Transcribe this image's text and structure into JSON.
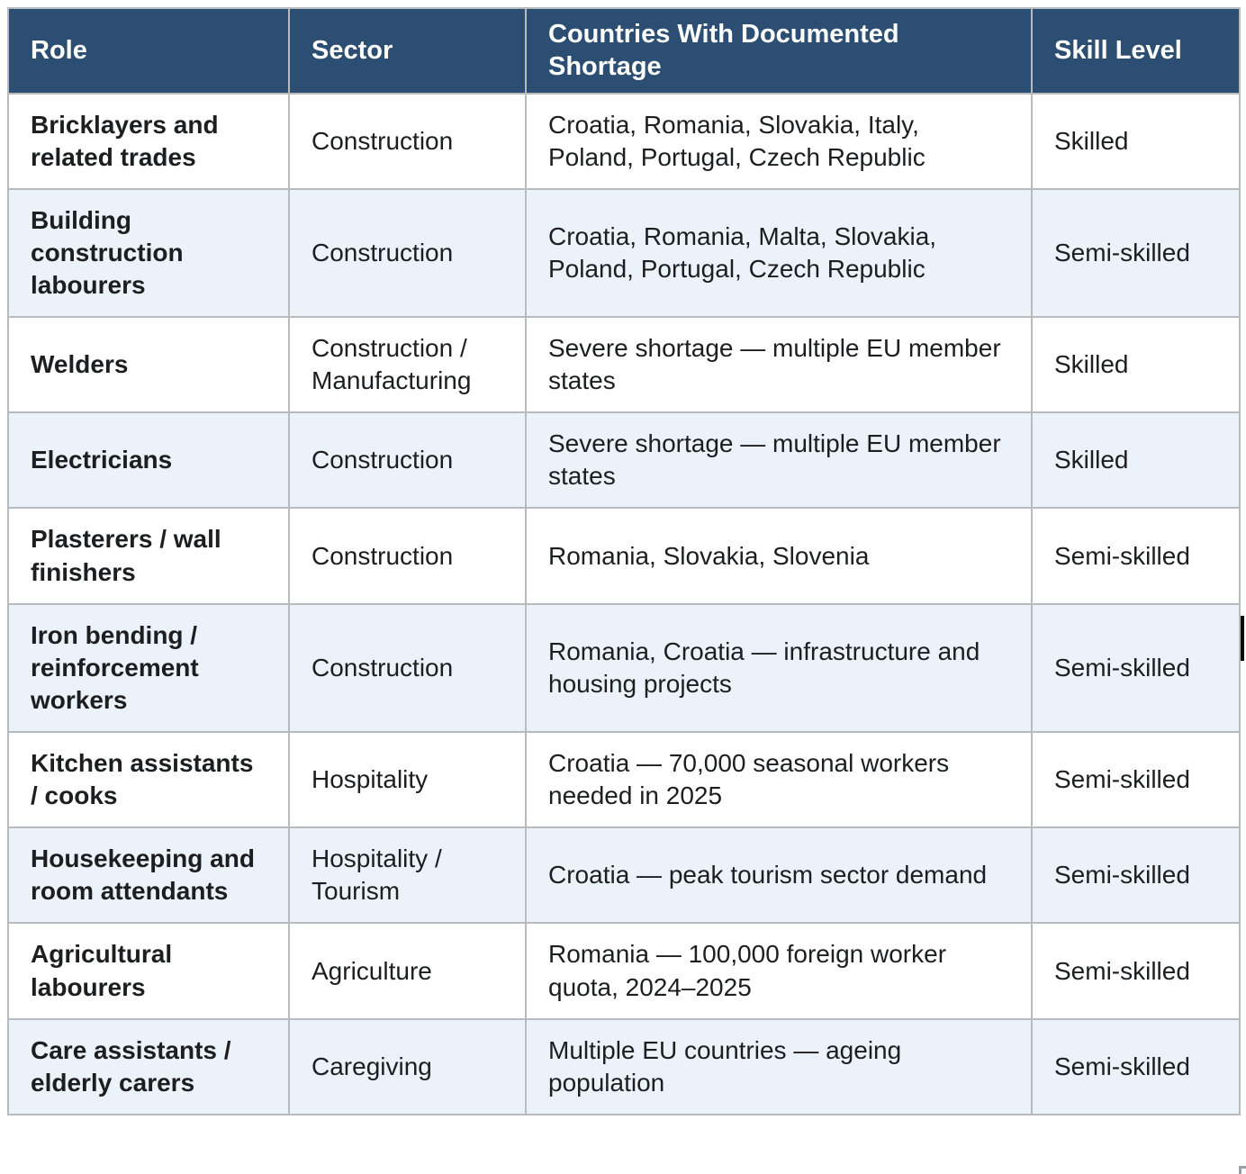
{
  "colors": {
    "header_bg": "#2b4e72",
    "header_text": "#ffffff",
    "row_alt_bg": "#ebf2fa",
    "row_bg": "#ffffff",
    "border": "#b8bbbe",
    "body_text": "#1d1e20"
  },
  "table": {
    "columns": [
      "Role",
      "Sector",
      "Countries With Documented Shortage",
      "Skill Level"
    ],
    "rows": [
      {
        "role": "Bricklayers and related trades",
        "sector": "Construction",
        "countries": "Croatia, Romania, Slovakia, Italy, Poland, Portugal, Czech Republic",
        "skill": "Skilled"
      },
      {
        "role": "Building construction labourers",
        "sector": "Construction",
        "countries": "Croatia, Romania, Malta, Slovakia, Poland, Portugal, Czech Republic",
        "skill": "Semi-skilled"
      },
      {
        "role": "Welders",
        "sector": "Construction / Manufacturing",
        "countries": "Severe shortage — multiple EU member states",
        "skill": "Skilled"
      },
      {
        "role": "Electricians",
        "sector": "Construction",
        "countries": "Severe shortage — multiple EU member states",
        "skill": "Skilled"
      },
      {
        "role": "Plasterers / wall finishers",
        "sector": "Construction",
        "countries": "Romania, Slovakia, Slovenia",
        "skill": "Semi-skilled"
      },
      {
        "role": "Iron bending / reinforcement workers",
        "sector": "Construction",
        "countries": "Romania, Croatia — infrastructure and housing projects",
        "skill": "Semi-skilled"
      },
      {
        "role": "Kitchen assistants / cooks",
        "sector": "Hospitality",
        "countries": "Croatia — 70,000 seasonal workers needed in 2025",
        "skill": "Semi-skilled"
      },
      {
        "role": "Housekeeping and room attendants",
        "sector": "Hospitality / Tourism",
        "countries": "Croatia — peak tourism sector demand",
        "skill": "Semi-skilled"
      },
      {
        "role": "Agricultural labourers",
        "sector": "Agriculture",
        "countries": "Romania — 100,000 foreign worker quota, 2024–2025",
        "skill": "Semi-skilled"
      },
      {
        "role": "Care assistants / elderly carers",
        "sector": "Caregiving",
        "countries": "Multiple EU countries — ageing population",
        "skill": "Semi-skilled"
      }
    ]
  }
}
